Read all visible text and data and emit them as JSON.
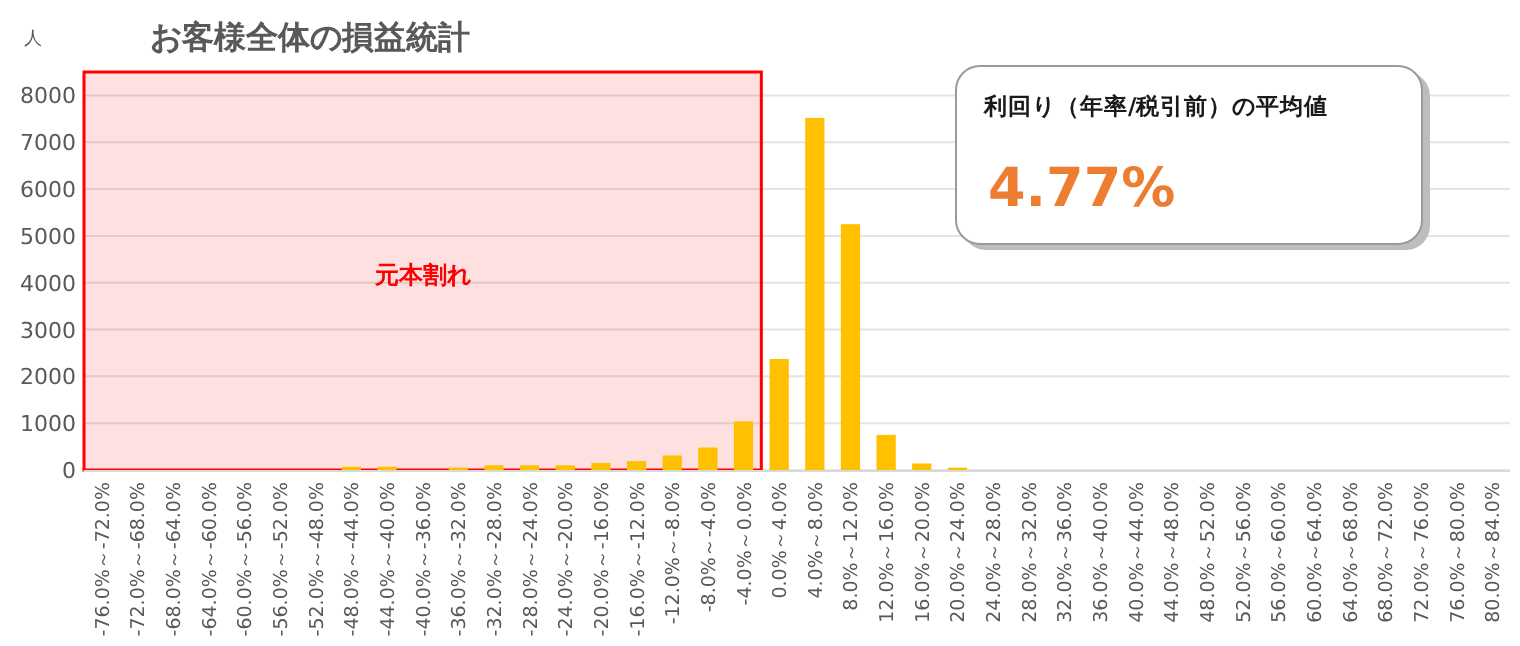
{
  "chart_data": {
    "type": "bar",
    "title": "お客様全体の損益統計",
    "ylabel": "人",
    "categories": [
      "-76.0%～-72.0%",
      "-72.0%～-68.0%",
      "-68.0%～-64.0%",
      "-64.0%～-60.0%",
      "-60.0%～-56.0%",
      "-56.0%～-52.0%",
      "-52.0%～-48.0%",
      "-48.0%～-44.0%",
      "-44.0%～-40.0%",
      "-40.0%～-36.0%",
      "-36.0%～-32.0%",
      "-32.0%～-28.0%",
      "-28.0%～-24.0%",
      "-24.0%～-20.0%",
      "-20.0%～-16.0%",
      "-16.0%～-12.0%",
      "-12.0%～-8.0%",
      "-8.0%～-4.0%",
      "-4.0%～0.0%",
      "0.0%～4.0%",
      "4.0%～8.0%",
      "8.0%～12.0%",
      "12.0%～16.0%",
      "16.0%～20.0%",
      "20.0%～24.0%",
      "24.0%～28.0%",
      "28.0%～32.0%",
      "32.0%～36.0%",
      "36.0%～40.0%",
      "40.0%～44.0%",
      "44.0%～48.0%",
      "48.0%～52.0%",
      "52.0%～56.0%",
      "56.0%～60.0%",
      "60.0%～64.0%",
      "64.0%～68.0%",
      "68.0%～72.0%",
      "72.0%～76.0%",
      "76.0%～80.0%",
      "80.0%～84.0%"
    ],
    "values": [
      0,
      0,
      0,
      0,
      0,
      0,
      0,
      70,
      70,
      0,
      50,
      100,
      100,
      100,
      150,
      190,
      310,
      480,
      1040,
      2370,
      7520,
      5250,
      750,
      140,
      50,
      0,
      0,
      0,
      0,
      0,
      0,
      0,
      0,
      0,
      0,
      0,
      0,
      0,
      0,
      0
    ],
    "color": "#ffc000",
    "ylim": [
      0,
      8500
    ],
    "yticks": [
      0,
      1000,
      2000,
      3000,
      4000,
      5000,
      6000,
      7000,
      8000
    ],
    "grid": "y",
    "bands": [
      {
        "axis": "x",
        "from": "-76.0%～-72.0%",
        "to": "-4.0%～0.0%",
        "label": "元本割れ",
        "color": "#ff0000"
      }
    ],
    "annotations": [
      "利回り（年率/税引前）の平均値",
      "4.77%"
    ]
  }
}
